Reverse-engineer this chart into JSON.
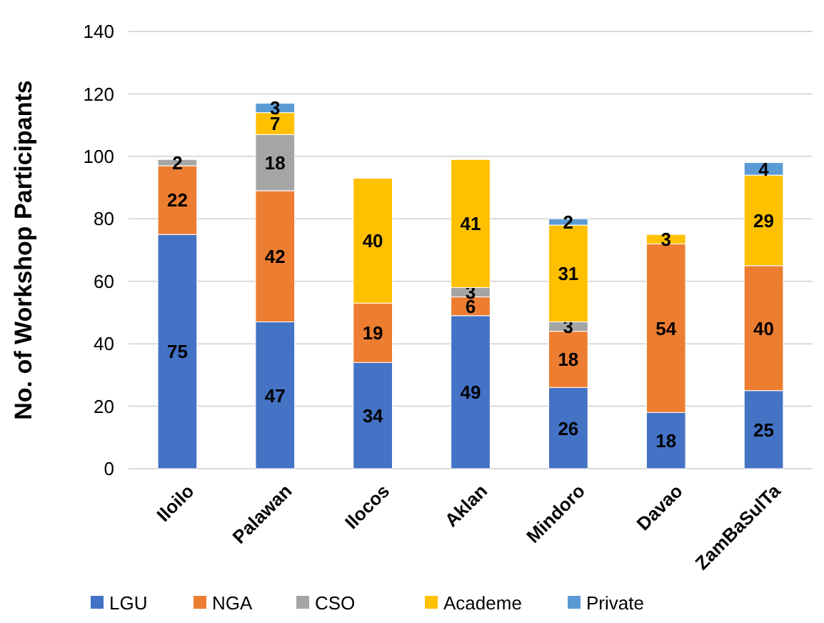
{
  "chart_data": {
    "type": "bar",
    "stacked": true,
    "ylabel": "No. of Workshop Participants",
    "categories": [
      "Iloilo",
      "Palawan",
      "Ilocos",
      "Aklan",
      "Mindoro",
      "Davao",
      "ZamBaSulTa"
    ],
    "series": [
      {
        "name": "LGU",
        "color": "#4472c4",
        "values": [
          75,
          47,
          34,
          49,
          26,
          18,
          25
        ]
      },
      {
        "name": "NGA",
        "color": "#ed7d31",
        "values": [
          22,
          42,
          19,
          6,
          18,
          54,
          40
        ]
      },
      {
        "name": "CSO",
        "color": "#a5a5a5",
        "values": [
          2,
          18,
          null,
          3,
          3,
          null,
          null
        ]
      },
      {
        "name": "Academe",
        "color": "#ffc000",
        "values": [
          null,
          7,
          40,
          41,
          31,
          3,
          29
        ]
      },
      {
        "name": "Private",
        "color": "#5b9bd5",
        "values": [
          null,
          3,
          null,
          null,
          2,
          null,
          4
        ]
      }
    ],
    "ylim": [
      0,
      140
    ],
    "yticks": [
      0,
      20,
      40,
      60,
      80,
      100,
      120,
      140
    ],
    "grid": "y",
    "legend": "bottom",
    "data_labels": true
  }
}
